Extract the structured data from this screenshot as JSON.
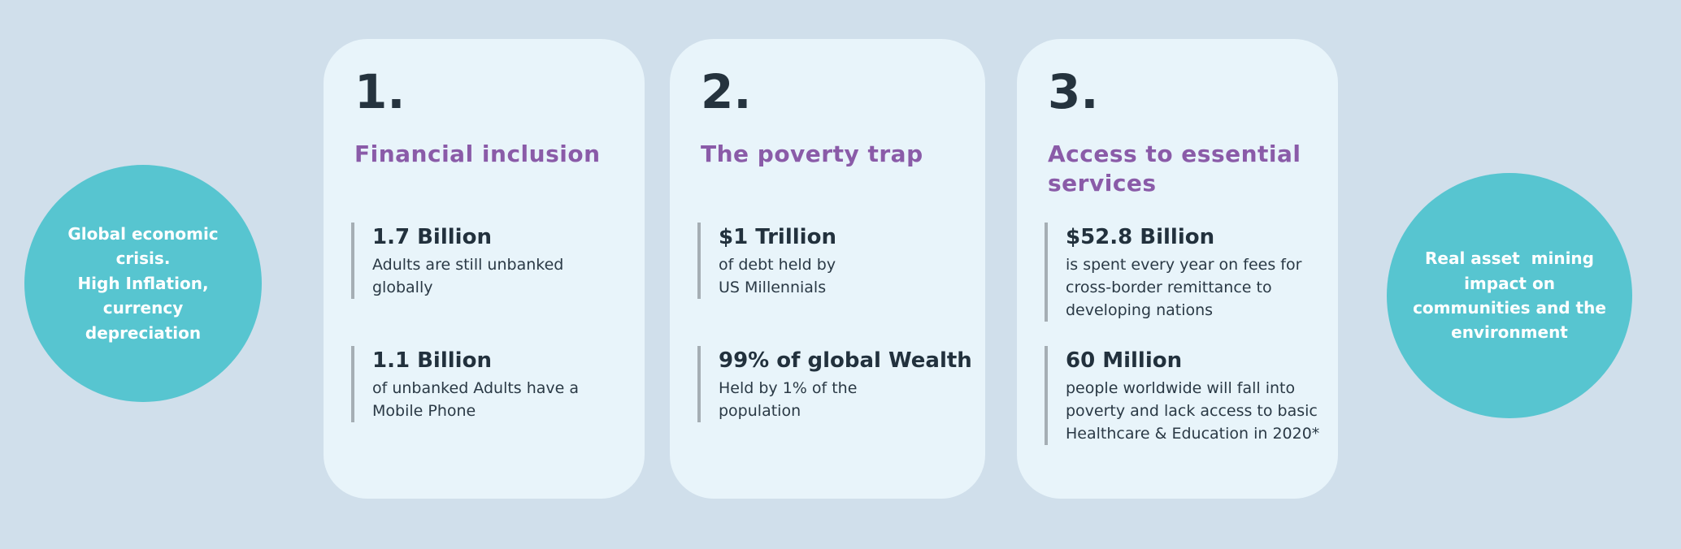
{
  "colors": {
    "page_background": "#d0dfeb",
    "card_background": "#e8f4fa",
    "circle_teal": "#57c5d0",
    "heading_purple": "#8a5ba8",
    "text_dark": "#25333e",
    "stat_bar_gray": "#a5aeb4",
    "circle_text_white": "#ffffff"
  },
  "left_circle": {
    "text": "Global economic\ncrisis.\nHigh Inflation,\ncurrency\ndepreciation"
  },
  "right_circle": {
    "text": "Real asset  mining\nimpact on\ncommunities and the\nenvironment"
  },
  "cards": [
    {
      "number": "1.",
      "heading": "Financial inclusion",
      "stats": [
        {
          "title": "1.7 Billion",
          "desc": "Adults are still unbanked\nglobally"
        },
        {
          "title": "1.1 Billion",
          "desc": "of unbanked Adults have a\nMobile Phone"
        }
      ]
    },
    {
      "number": "2.",
      "heading": "The poverty trap",
      "stats": [
        {
          "title": "$1 Trillion",
          "desc": "of debt held by\nUS Millennials"
        },
        {
          "title": "99% of global Wealth",
          "desc": "Held by 1% of the\npopulation"
        }
      ]
    },
    {
      "number": "3.",
      "heading": "Access to essential\nservices",
      "stats": [
        {
          "title": "$52.8 Billion",
          "desc": "is spent every year on fees for\ncross-border remittance to\ndeveloping nations"
        },
        {
          "title": "60 Million",
          "desc": "people worldwide will fall into\npoverty and lack access to basic\nHealthcare & Education in 2020*"
        }
      ]
    }
  ]
}
